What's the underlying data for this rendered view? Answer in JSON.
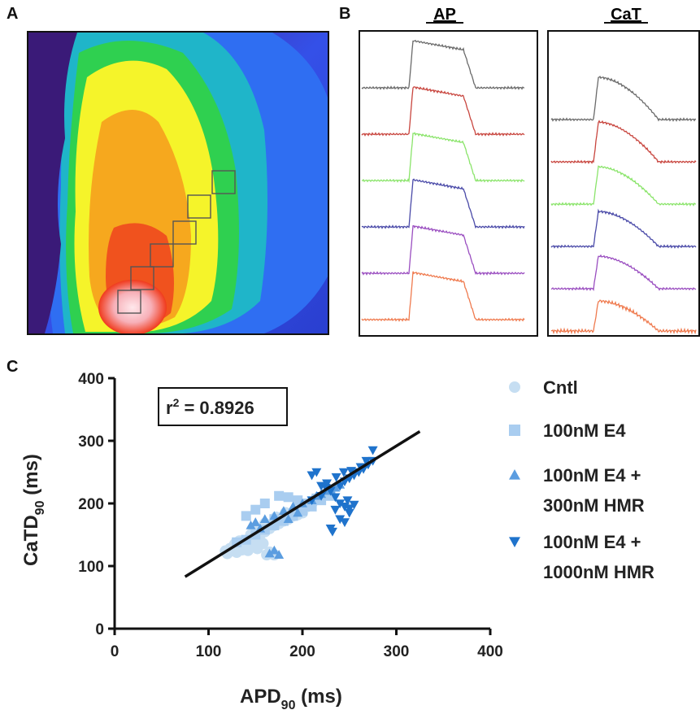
{
  "panels": {
    "a_label": "A",
    "b_label": "B",
    "c_label": "C"
  },
  "heatmap": {
    "description_name": "activation-map",
    "colors": {
      "purple": "#3a1a78",
      "blue": "#2f5ef0",
      "cyan": "#18b8c8",
      "green": "#28d048",
      "yellow": "#f6f52a",
      "orange": "#f7a21c",
      "red": "#f03a1c",
      "white": "#ffd8dc"
    }
  },
  "traces": {
    "ap_title": "AP",
    "cat_title": "CaT",
    "trace_colors": [
      "#6a6a6a",
      "#c8453e",
      "#8ae46a",
      "#4a4aa8",
      "#9a4ec0",
      "#ef7a4e"
    ]
  },
  "chart_data": {
    "type": "scatter",
    "xlabel": "APD90 (ms)",
    "xlabel_main": "APD",
    "xlabel_sub": "90",
    "xlabel_unit": " (ms)",
    "ylabel": "CaTD90 (ms)",
    "ylabel_main": "CaTD",
    "ylabel_sub": "90",
    "ylabel_unit": " (ms)",
    "xlim": [
      0,
      400
    ],
    "ylim": [
      0,
      400
    ],
    "xticks": [
      0,
      100,
      200,
      300,
      400
    ],
    "yticks": [
      0,
      100,
      200,
      300,
      400
    ],
    "annotation": "r² = 0.8926",
    "annotation_main": "r",
    "annotation_sup": "2",
    "annotation_rest": " = 0.8926",
    "regression_line": {
      "x": [
        75,
        325
      ],
      "y": [
        83,
        315
      ]
    },
    "series": [
      {
        "name": "Cntl",
        "marker": "circle",
        "color": "#c6def2",
        "points": [
          [
            120,
            120
          ],
          [
            125,
            125
          ],
          [
            130,
            128
          ],
          [
            135,
            132
          ],
          [
            140,
            138
          ],
          [
            145,
            140
          ],
          [
            150,
            145
          ],
          [
            155,
            150
          ],
          [
            160,
            155
          ],
          [
            165,
            160
          ],
          [
            170,
            165
          ],
          [
            175,
            168
          ],
          [
            180,
            172
          ],
          [
            185,
            175
          ],
          [
            190,
            180
          ],
          [
            195,
            182
          ],
          [
            200,
            185
          ],
          [
            138,
            130
          ],
          [
            142,
            125
          ],
          [
            148,
            133
          ],
          [
            152,
            128
          ],
          [
            158,
            136
          ],
          [
            162,
            118
          ],
          [
            165,
            122
          ],
          [
            170,
            118
          ],
          [
            128,
            135
          ],
          [
            133,
            140
          ],
          [
            145,
            150
          ],
          [
            150,
            158
          ],
          [
            160,
            168
          ],
          [
            172,
            178
          ],
          [
            182,
            185
          ],
          [
            195,
            190
          ],
          [
            205,
            195
          ],
          [
            210,
            200
          ],
          [
            130,
            122
          ],
          [
            136,
            126
          ],
          [
            144,
            130
          ],
          [
            123,
            128
          ],
          [
            118,
            124
          ]
        ]
      },
      {
        "name": "100nM E4",
        "marker": "square",
        "color": "#a9cdf0",
        "points": [
          [
            130,
            138
          ],
          [
            140,
            142
          ],
          [
            150,
            150
          ],
          [
            160,
            158
          ],
          [
            170,
            165
          ],
          [
            180,
            172
          ],
          [
            190,
            180
          ],
          [
            200,
            188
          ],
          [
            210,
            195
          ],
          [
            220,
            205
          ],
          [
            230,
            212
          ],
          [
            175,
            212
          ],
          [
            185,
            210
          ],
          [
            160,
            200
          ],
          [
            150,
            190
          ],
          [
            140,
            180
          ],
          [
            205,
            200
          ],
          [
            215,
            208
          ],
          [
            225,
            215
          ],
          [
            195,
            205
          ],
          [
            170,
            175
          ]
        ]
      },
      {
        "name": "100nM E4 + 300nM HMR",
        "marker": "triangle-up",
        "color": "#5b9de0",
        "points": [
          [
            150,
            170
          ],
          [
            160,
            175
          ],
          [
            170,
            180
          ],
          [
            180,
            188
          ],
          [
            190,
            195
          ],
          [
            200,
            200
          ],
          [
            210,
            205
          ],
          [
            220,
            215
          ],
          [
            230,
            222
          ],
          [
            240,
            230
          ],
          [
            165,
            120
          ],
          [
            170,
            125
          ],
          [
            175,
            118
          ],
          [
            185,
            175
          ],
          [
            195,
            185
          ],
          [
            215,
            212
          ],
          [
            225,
            220
          ],
          [
            235,
            225
          ],
          [
            155,
            160
          ],
          [
            145,
            165
          ]
        ]
      },
      {
        "name": "100nM E4 + 1000nM HMR",
        "marker": "triangle-down",
        "color": "#1f73cc",
        "points": [
          [
            210,
            205
          ],
          [
            220,
            212
          ],
          [
            230,
            220
          ],
          [
            240,
            228
          ],
          [
            245,
            235
          ],
          [
            250,
            240
          ],
          [
            255,
            245
          ],
          [
            260,
            250
          ],
          [
            265,
            255
          ],
          [
            270,
            262
          ],
          [
            275,
            268
          ],
          [
            275,
            285
          ],
          [
            210,
            245
          ],
          [
            215,
            250
          ],
          [
            220,
            228
          ],
          [
            225,
            225
          ],
          [
            235,
            210
          ],
          [
            240,
            200
          ],
          [
            245,
            195
          ],
          [
            235,
            190
          ],
          [
            250,
            192
          ],
          [
            255,
            198
          ],
          [
            230,
            160
          ],
          [
            232,
            155
          ],
          [
            240,
            175
          ],
          [
            245,
            170
          ],
          [
            250,
            185
          ],
          [
            248,
            205
          ],
          [
            226,
            232
          ],
          [
            236,
            242
          ],
          [
            244,
            250
          ],
          [
            252,
            252
          ],
          [
            262,
            258
          ],
          [
            268,
            268
          ]
        ]
      }
    ],
    "legend": [
      {
        "marker": "circle",
        "color": "#c6def2",
        "line1": "Cntl",
        "line2": ""
      },
      {
        "marker": "square",
        "color": "#a9cdf0",
        "line1": "100nM E4",
        "line2": ""
      },
      {
        "marker": "triangle-up",
        "color": "#5b9de0",
        "line1": "100nM E4 +",
        "line2": "300nM HMR"
      },
      {
        "marker": "triangle-down",
        "color": "#1f73cc",
        "line1": "100nM E4 +",
        "line2": "1000nM HMR"
      }
    ]
  }
}
